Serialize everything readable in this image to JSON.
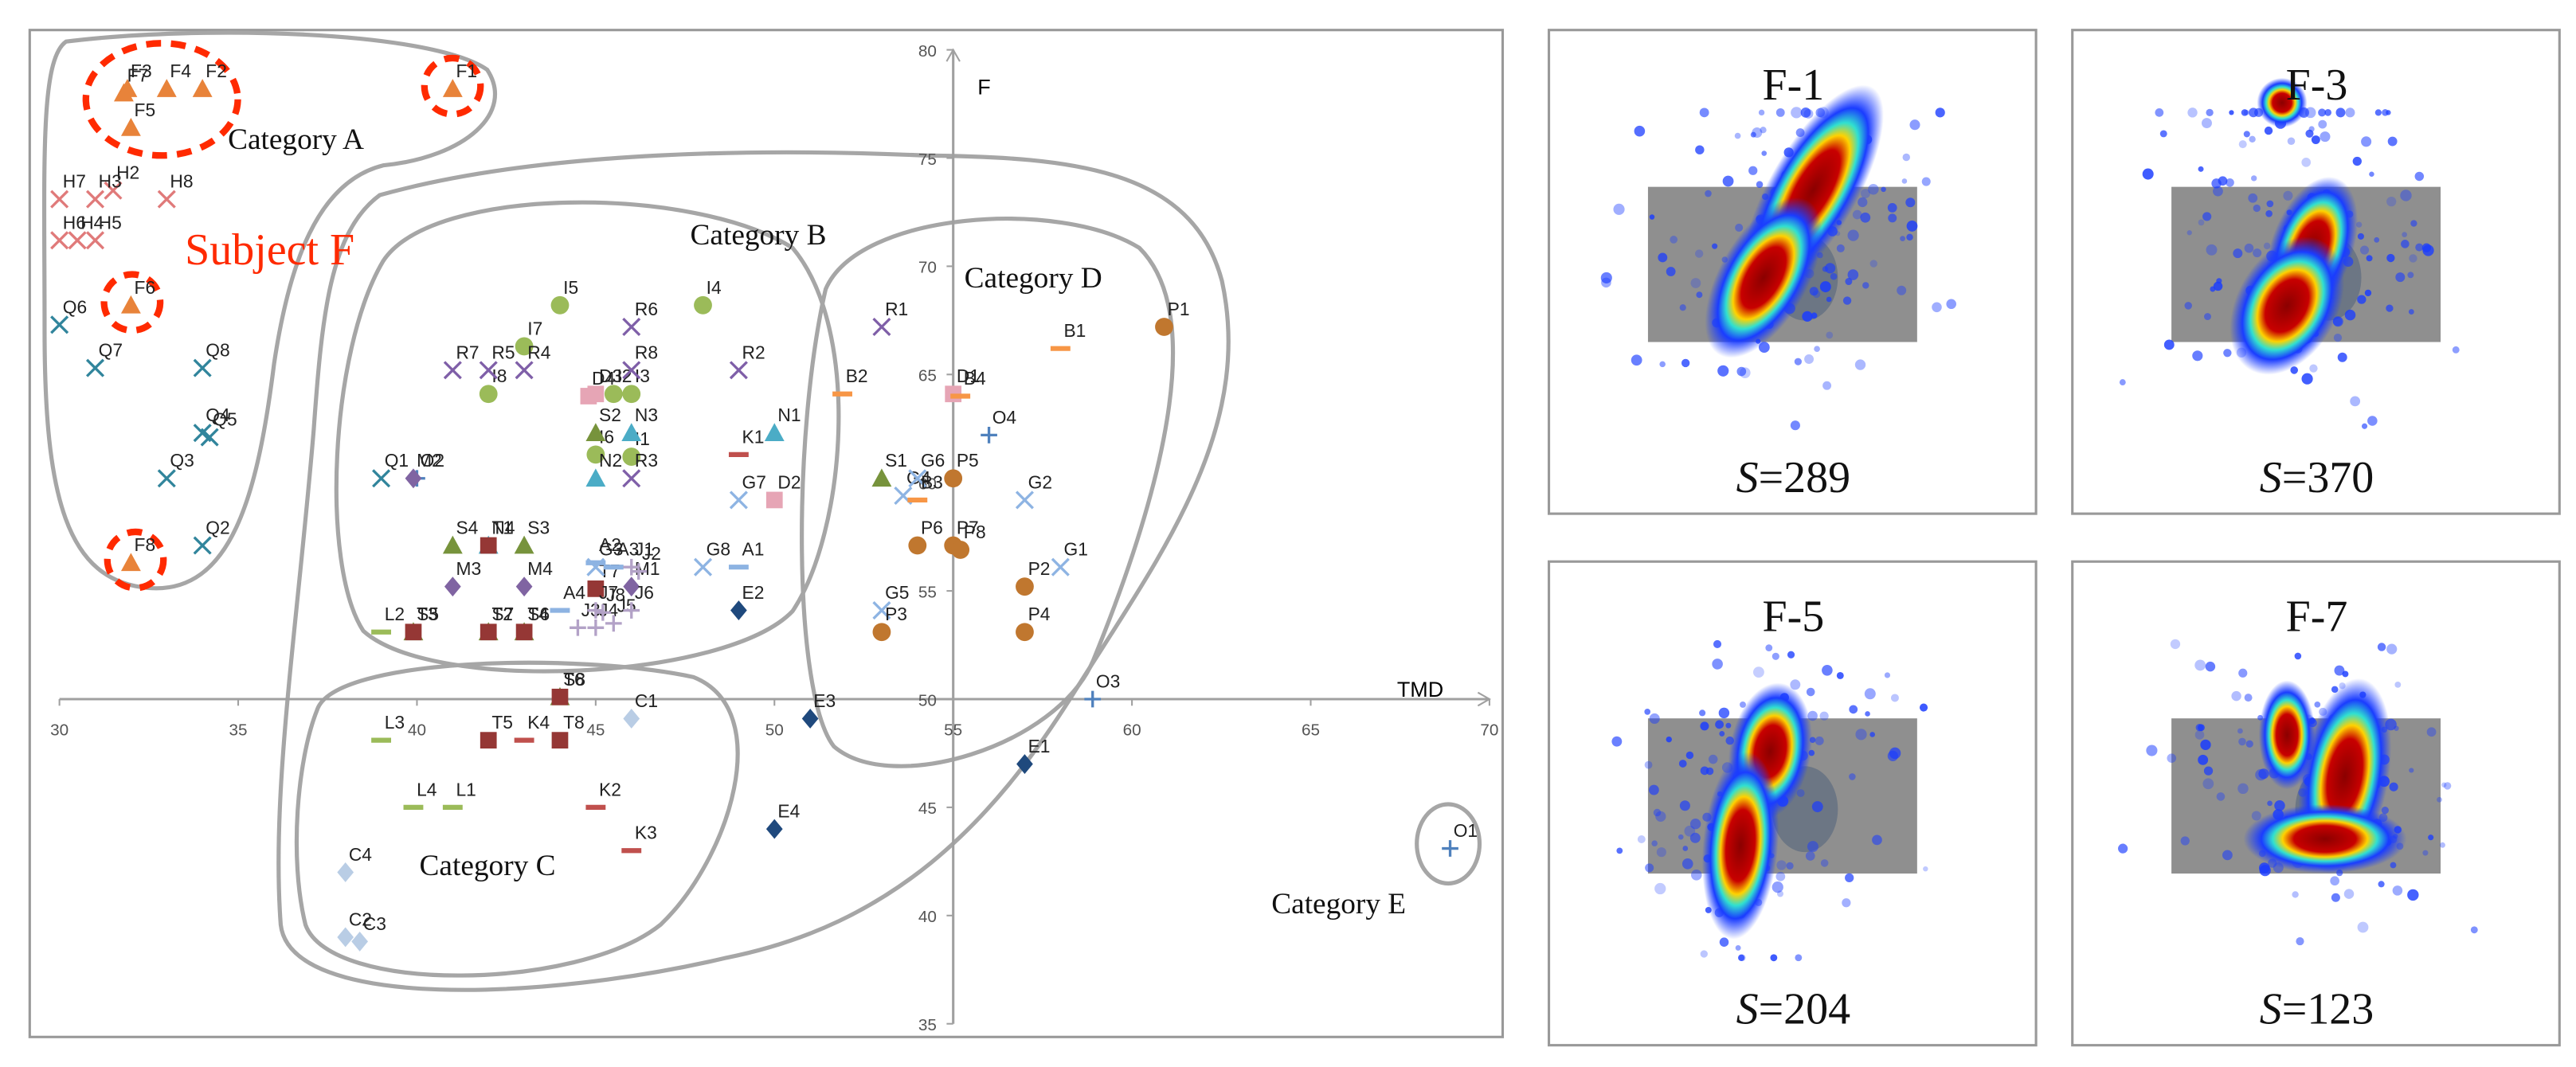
{
  "chart_data": {
    "type": "scatter",
    "x_label": "TMD",
    "y_label": "F",
    "xlim": [
      30,
      70
    ],
    "xticks": [
      30,
      35,
      40,
      45,
      50,
      55,
      60,
      65,
      70
    ],
    "ylim": [
      35,
      80
    ],
    "yticks": [
      35,
      40,
      45,
      50,
      55,
      60,
      65,
      70,
      75,
      80
    ],
    "annotations": [
      "Category A",
      "Category B",
      "Category C",
      "Category D",
      "Category E",
      "Subject F"
    ],
    "series": [
      {
        "color": "#e8833a",
        "marker": "triangle",
        "labels": [
          "F1",
          "F2",
          "F3",
          "F4",
          "F5",
          "F6",
          "F7",
          "F8"
        ],
        "x": [
          41.0,
          34.0,
          31.9,
          33.0,
          32.0,
          32.0,
          31.8,
          32.0
        ],
        "y": [
          78.2,
          78.2,
          78.2,
          78.2,
          76.4,
          68.2,
          78.0,
          56.3
        ]
      },
      {
        "color": "#e07a7a",
        "marker": "x",
        "labels": [
          "H2",
          "H3",
          "H4",
          "H5",
          "H6",
          "H7",
          "H8"
        ],
        "x": [
          31.5,
          31.0,
          30.5,
          31.0,
          30.0,
          30.0,
          33.0
        ],
        "y": [
          73.5,
          73.1,
          71.2,
          71.2,
          71.2,
          73.1,
          73.1
        ]
      },
      {
        "color": "#31859c",
        "marker": "x",
        "labels": [
          "Q1",
          "Q2",
          "Q3",
          "Q4",
          "Q5",
          "Q6",
          "Q7",
          "Q8"
        ],
        "x": [
          39.0,
          34.0,
          33.0,
          34.0,
          34.2,
          30.0,
          31.0,
          34.0
        ],
        "y": [
          60.2,
          57.1,
          60.2,
          62.3,
          62.1,
          67.3,
          65.3,
          65.3
        ]
      },
      {
        "color": "#9bbb59",
        "marker": "circle",
        "labels": [
          "I1",
          "I2",
          "I3",
          "I4",
          "I5",
          "I6",
          "I7",
          "I8"
        ],
        "x": [
          46.0,
          45.5,
          46.0,
          48.0,
          44.0,
          45.0,
          43.0,
          42.0
        ],
        "y": [
          61.2,
          64.1,
          64.1,
          68.2,
          68.2,
          61.3,
          66.3,
          64.1
        ]
      },
      {
        "color": "#7f5fa8",
        "marker": "x",
        "labels": [
          "R1",
          "R2",
          "R3",
          "R4",
          "R5",
          "R6",
          "R7",
          "R8"
        ],
        "x": [
          53.0,
          49.0,
          46.0,
          43.0,
          42.0,
          46.0,
          41.0,
          46.0
        ],
        "y": [
          67.2,
          65.2,
          60.2,
          65.2,
          65.2,
          67.2,
          65.2,
          65.2
        ]
      },
      {
        "color": "#e6a5b5",
        "marker": "square",
        "labels": [
          "D1",
          "D2",
          "D3",
          "D4"
        ],
        "x": [
          55.0,
          50.0,
          45.0,
          44.8
        ],
        "y": [
          64.1,
          59.2,
          64.1,
          64.0
        ]
      },
      {
        "color": "#4bacc6",
        "marker": "triangle",
        "labels": [
          "N1",
          "N2",
          "N3",
          "N4"
        ],
        "x": [
          50.0,
          45.0,
          46.0,
          42.0
        ],
        "y": [
          62.3,
          60.2,
          62.3,
          57.1
        ]
      },
      {
        "color": "#c0504d",
        "marker": "dash",
        "labels": [
          "K1",
          "K2",
          "K3",
          "K4"
        ],
        "x": [
          49.0,
          45.0,
          46.0,
          43.0
        ],
        "y": [
          61.3,
          45.0,
          43.0,
          48.1
        ]
      },
      {
        "color": "#4f81bd",
        "marker": "plus",
        "labels": [
          "O1",
          "O2",
          "O3",
          "O4"
        ],
        "x": [
          68.9,
          40.0,
          58.9,
          56.0
        ],
        "y": [
          43.1,
          60.2,
          50.0,
          62.2
        ]
      },
      {
        "color": "#8064a2",
        "marker": "diamond",
        "labels": [
          "M1",
          "M2",
          "M3",
          "M4"
        ],
        "x": [
          46.0,
          39.9,
          41.0,
          43.0
        ],
        "y": [
          55.2,
          60.2,
          55.2,
          55.2
        ]
      },
      {
        "color": "#77933c",
        "marker": "triangle",
        "labels": [
          "S1",
          "S2",
          "S3",
          "S4",
          "S5",
          "S6",
          "S7",
          "S8"
        ],
        "x": [
          53.0,
          45.0,
          43.0,
          41.0,
          39.9,
          43.0,
          42.0,
          44.0
        ],
        "y": [
          60.2,
          62.3,
          57.1,
          57.1,
          53.1,
          53.1,
          53.1,
          50.1
        ]
      },
      {
        "color": "#953735",
        "marker": "square",
        "labels": [
          "T1",
          "T2",
          "T3",
          "T4",
          "T5",
          "T6",
          "T7",
          "T8"
        ],
        "x": [
          42.0,
          42.0,
          39.9,
          43.0,
          42.0,
          44.0,
          45.0,
          44.0
        ],
        "y": [
          57.1,
          53.1,
          53.1,
          53.1,
          48.1,
          50.1,
          55.1,
          48.1
        ]
      },
      {
        "color": "#8db3e2",
        "marker": "dash",
        "labels": [
          "A1",
          "A2",
          "A3",
          "A4"
        ],
        "x": [
          49.0,
          45.0,
          45.5,
          44.0
        ],
        "y": [
          56.1,
          56.3,
          56.1,
          54.1
        ]
      },
      {
        "color": "#b3a2c7",
        "marker": "plus",
        "labels": [
          "J1",
          "J2",
          "J3",
          "J4",
          "J5",
          "J6",
          "J7",
          "J8"
        ],
        "x": [
          46.0,
          46.2,
          44.5,
          45.0,
          45.5,
          46.0,
          45.0,
          45.2
        ],
        "y": [
          56.1,
          55.9,
          53.3,
          53.3,
          53.5,
          54.1,
          54.1,
          54.0
        ]
      },
      {
        "color": "#8eb4e3",
        "marker": "x",
        "labels": [
          "G1",
          "G2",
          "G3",
          "G4",
          "G5",
          "G6",
          "G7",
          "G8"
        ],
        "x": [
          58.0,
          57.0,
          45.0,
          53.6,
          53.0,
          54.0,
          49.0,
          48.0
        ],
        "y": [
          56.1,
          59.2,
          56.1,
          59.4,
          54.1,
          60.2,
          59.2,
          56.1
        ]
      },
      {
        "color": "#1f497d",
        "marker": "diamond",
        "labels": [
          "E1",
          "E2",
          "E3",
          "E4"
        ],
        "x": [
          57.0,
          49.0,
          51.0,
          50.0
        ],
        "y": [
          47.0,
          54.1,
          49.1,
          44.0
        ]
      },
      {
        "color": "#9bbb59",
        "marker": "dash",
        "labels": [
          "L1",
          "L2",
          "L3",
          "L4"
        ],
        "x": [
          41.0,
          39.0,
          39.0,
          39.9
        ],
        "y": [
          45.0,
          53.1,
          48.1,
          45.0
        ]
      },
      {
        "color": "#b9cde5",
        "marker": "diamond",
        "labels": [
          "C1",
          "C2",
          "C3",
          "C4"
        ],
        "x": [
          46.0,
          38.0,
          38.4,
          38.0
        ],
        "y": [
          49.1,
          39.0,
          38.8,
          42.0
        ]
      },
      {
        "color": "#f79646",
        "marker": "dash",
        "labels": [
          "B1",
          "B2",
          "B3",
          "B4"
        ],
        "x": [
          58.0,
          51.9,
          54.0,
          55.2
        ],
        "y": [
          66.2,
          64.1,
          59.2,
          64.0
        ]
      },
      {
        "color": "#c0772f",
        "marker": "circle",
        "labels": [
          "P1",
          "P2",
          "P3",
          "P4",
          "P5",
          "P6",
          "P7",
          "P8"
        ],
        "x": [
          60.9,
          57.0,
          53.0,
          57.0,
          55.0,
          54.0,
          55.0,
          55.2
        ],
        "y": [
          67.2,
          55.2,
          53.1,
          53.1,
          60.2,
          57.1,
          57.1,
          56.9
        ]
      }
    ]
  },
  "panels": [
    {
      "title": "F-1",
      "symbol": "S",
      "score": "=289"
    },
    {
      "title": "F-3",
      "symbol": "S",
      "score": "=370"
    },
    {
      "title": "F-5",
      "symbol": "S",
      "score": "=204"
    },
    {
      "title": "F-7",
      "symbol": "S",
      "score": "=123"
    }
  ]
}
